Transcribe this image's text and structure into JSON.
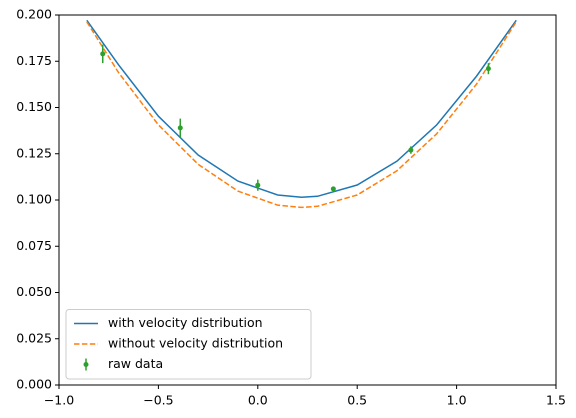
{
  "chart_data": {
    "type": "line",
    "xlim": [
      -1.0,
      1.5
    ],
    "ylim": [
      0,
      0.2
    ],
    "xticks": [
      {
        "value": -1.0,
        "label": "−1.0"
      },
      {
        "value": -0.5,
        "label": "−0.5"
      },
      {
        "value": 0.0,
        "label": "0.0"
      },
      {
        "value": 0.5,
        "label": "0.5"
      },
      {
        "value": 1.0,
        "label": "1.0"
      },
      {
        "value": 1.5,
        "label": "1.5"
      }
    ],
    "yticks": [
      {
        "value": 0,
        "label": "0.000"
      },
      {
        "value": 0.025,
        "label": "0.025"
      },
      {
        "value": 0.05,
        "label": "0.050"
      },
      {
        "value": 0.075,
        "label": "0.075"
      },
      {
        "value": 0.1,
        "label": "0.100"
      },
      {
        "value": 0.125,
        "label": "0.125"
      },
      {
        "value": 0.15,
        "label": "0.150"
      },
      {
        "value": 0.175,
        "label": "0.175"
      },
      {
        "value": 0.2,
        "label": "0.200"
      }
    ],
    "legend": "lower left",
    "series": [
      {
        "name": "with velocity distribution",
        "color": "#1f77b4",
        "style": "solid",
        "x": [
          -0.86,
          -0.7,
          -0.5,
          -0.3,
          -0.1,
          0.1,
          0.22,
          0.3,
          0.5,
          0.7,
          0.9,
          1.1,
          1.3
        ],
        "values": [
          0.1971,
          0.173,
          0.1453,
          0.1243,
          0.1102,
          0.1027,
          0.1015,
          0.102,
          0.1081,
          0.121,
          0.1406,
          0.1669,
          0.1971
        ]
      },
      {
        "name": "without velocity distribution",
        "color": "#ff7f0e",
        "style": "dashed",
        "x": [
          -0.86,
          -0.7,
          -0.5,
          -0.3,
          -0.1,
          0.1,
          0.22,
          0.3,
          0.5,
          0.7,
          0.9,
          1.1,
          1.3
        ],
        "values": [
          0.1963,
          0.1688,
          0.1406,
          0.1193,
          0.1048,
          0.0972,
          0.096,
          0.0966,
          0.1027,
          0.1158,
          0.1358,
          0.1626,
          0.1963
        ]
      },
      {
        "name": "raw data",
        "color": "#2ca02c",
        "style": "errorbar",
        "x": [
          -0.78,
          -0.39,
          0.0,
          0.38,
          0.77,
          1.16
        ],
        "values": [
          0.179,
          0.139,
          0.108,
          0.106,
          0.127,
          0.171
        ],
        "errors": [
          0.005,
          0.005,
          0.003,
          0.001,
          0.002,
          0.003
        ]
      }
    ]
  }
}
